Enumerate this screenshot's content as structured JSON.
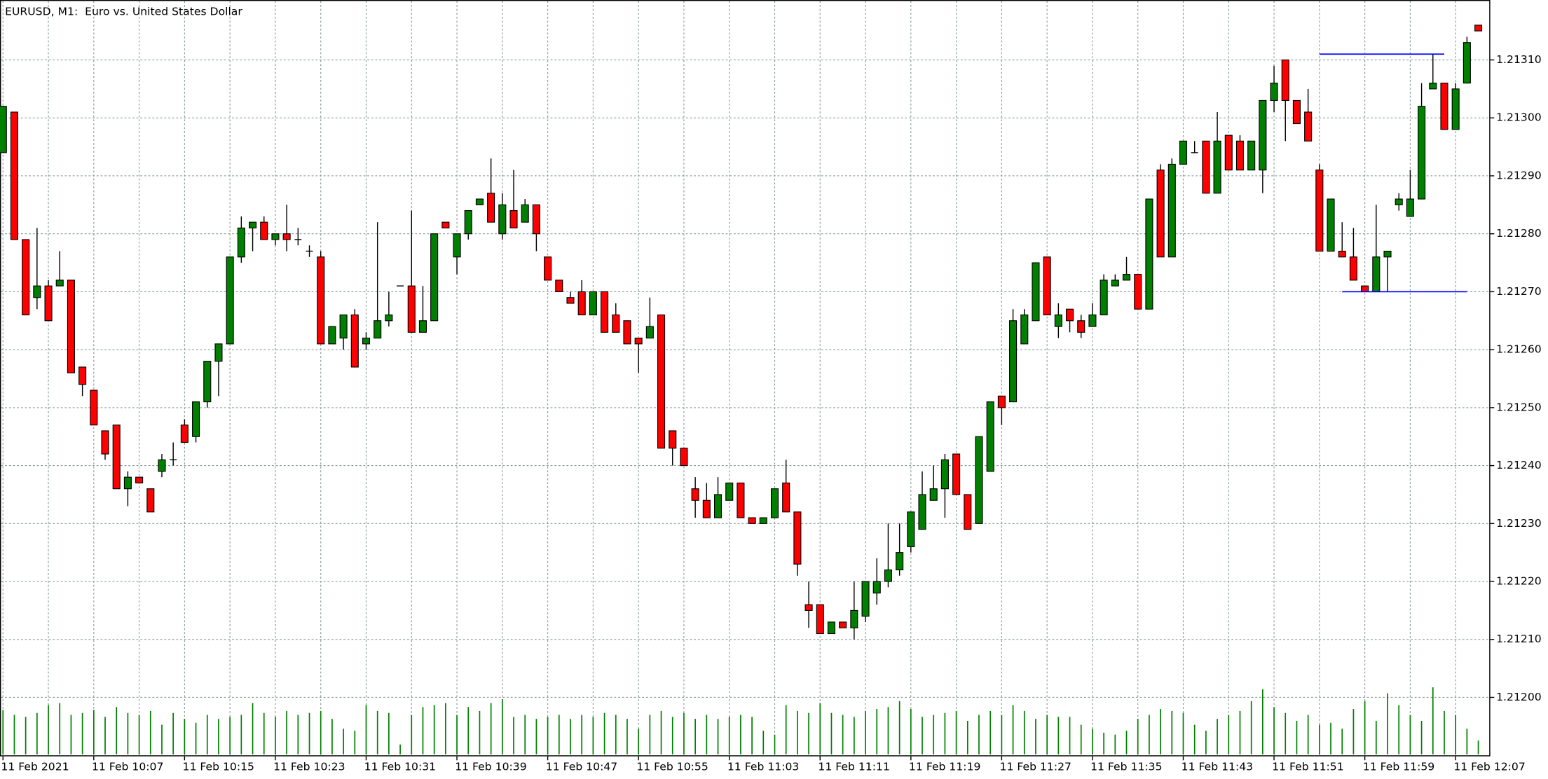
{
  "chart_data": {
    "type": "candlestick",
    "title": "EURUSD, M1:  Euro vs. United States Dollar",
    "categories": [
      "11 Feb 2021",
      null,
      null,
      null,
      null,
      null,
      null,
      null,
      "11 Feb 10:07",
      null,
      null,
      null,
      null,
      null,
      null,
      null,
      "11 Feb 10:15",
      null,
      null,
      null,
      null,
      null,
      null,
      null,
      "11 Feb 10:23",
      null,
      null,
      null,
      null,
      null,
      null,
      null,
      "11 Feb 10:31",
      null,
      null,
      null,
      null,
      null,
      null,
      null,
      "11 Feb 10:39",
      null,
      null,
      null,
      null,
      null,
      null,
      null,
      "11 Feb 10:47",
      null,
      null,
      null,
      null,
      null,
      null,
      null,
      "11 Feb 10:55",
      null,
      null,
      null,
      null,
      null,
      null,
      null,
      "11 Feb 11:03",
      null,
      null,
      null,
      null,
      null,
      null,
      null,
      "11 Feb 11:11",
      null,
      null,
      null,
      null,
      null,
      null,
      null,
      "11 Feb 11:19",
      null,
      null,
      null,
      null,
      null,
      null,
      null,
      "11 Feb 11:27",
      null,
      null,
      null,
      null,
      null,
      null,
      null,
      "11 Feb 11:35",
      null,
      null,
      null,
      null,
      null,
      null,
      null,
      "11 Feb 11:43",
      null,
      null,
      null,
      null,
      null,
      null,
      null,
      "11 Feb 11:51",
      null,
      null,
      null,
      null,
      null,
      null,
      null,
      "11 Feb 11:59",
      null,
      null,
      null,
      null,
      null,
      null,
      null,
      "11 Feb 12:07",
      null,
      null
    ],
    "open": [
      1.21294,
      1.21301,
      1.21279,
      1.21269,
      1.21271,
      1.21271,
      1.21272,
      1.21257,
      1.21253,
      1.21246,
      1.21247,
      1.21236,
      1.21238,
      1.21236,
      1.21239,
      1.21241,
      1.21247,
      1.21245,
      1.21251,
      1.21258,
      1.21261,
      1.21276,
      1.21281,
      1.21282,
      1.21279,
      1.2128,
      1.21279,
      1.21277,
      1.21276,
      1.21261,
      1.21262,
      1.21266,
      1.21261,
      1.21262,
      1.21265,
      1.21271,
      1.21271,
      1.21263,
      1.21265,
      1.21282,
      1.21276,
      1.2128,
      1.21285,
      1.21287,
      1.2128,
      1.21284,
      1.21282,
      1.21285,
      1.21276,
      1.21272,
      1.21269,
      1.2127,
      1.21266,
      1.2127,
      1.21266,
      1.21265,
      1.21262,
      1.21262,
      1.21266,
      1.21246,
      1.21243,
      1.21236,
      1.21234,
      1.21231,
      1.21234,
      1.21237,
      1.21231,
      1.2123,
      1.21231,
      1.21237,
      1.21232,
      1.21216,
      1.21216,
      1.21211,
      1.21213,
      1.21212,
      1.21214,
      1.21218,
      1.2122,
      1.21222,
      1.21226,
      1.21229,
      1.21234,
      1.21236,
      1.21242,
      1.21235,
      1.2123,
      1.21239,
      1.21252,
      1.21251,
      1.21261,
      1.21265,
      1.21276,
      1.21264,
      1.21267,
      1.21265,
      1.21264,
      1.21266,
      1.21271,
      1.21272,
      1.21273,
      1.21267,
      1.21291,
      1.21276,
      1.21292,
      1.21294,
      1.21296,
      1.21287,
      1.21297,
      1.21296,
      1.21291,
      1.21291,
      1.21303,
      1.2131,
      1.21303,
      1.21301,
      1.21291,
      1.21277,
      1.21277,
      1.21276,
      1.21271,
      1.2127,
      1.21276,
      1.21285,
      1.21283,
      1.21286,
      1.21305,
      1.21306,
      1.21298,
      1.21306,
      1.21316
    ],
    "high": [
      1.21302,
      1.21301,
      1.21279,
      1.21281,
      1.21272,
      1.21277,
      1.21272,
      1.21257,
      1.21253,
      1.21246,
      1.21247,
      1.21239,
      1.21238,
      1.21236,
      1.21242,
      1.21244,
      1.21248,
      1.21251,
      1.21258,
      1.21261,
      1.21276,
      1.21283,
      1.21282,
      1.21283,
      1.2128,
      1.21285,
      1.21281,
      1.21278,
      1.21277,
      1.21264,
      1.21266,
      1.21267,
      1.21263,
      1.21282,
      1.2127,
      1.21271,
      1.21284,
      1.21271,
      1.2128,
      1.21282,
      1.2128,
      1.21284,
      1.21286,
      1.21293,
      1.21287,
      1.21291,
      1.21286,
      1.21285,
      1.21276,
      1.21272,
      1.2127,
      1.21272,
      1.2127,
      1.2127,
      1.21268,
      1.21265,
      1.21262,
      1.21269,
      1.21266,
      1.21246,
      1.21243,
      1.21238,
      1.21237,
      1.21238,
      1.21237,
      1.21237,
      1.21231,
      1.21231,
      1.21236,
      1.21241,
      1.21232,
      1.2122,
      1.21216,
      1.21213,
      1.21213,
      1.2122,
      1.2122,
      1.21224,
      1.2123,
      1.2123,
      1.21232,
      1.21239,
      1.2124,
      1.21242,
      1.21242,
      1.21235,
      1.21245,
      1.21251,
      1.21252,
      1.21267,
      1.21267,
      1.21275,
      1.21276,
      1.21268,
      1.21267,
      1.21266,
      1.21268,
      1.21273,
      1.21273,
      1.21276,
      1.21273,
      1.21286,
      1.21292,
      1.21293,
      1.21296,
      1.21296,
      1.21296,
      1.21301,
      1.21297,
      1.21297,
      1.21296,
      1.21303,
      1.21309,
      1.2131,
      1.21303,
      1.21305,
      1.21292,
      1.21286,
      1.21282,
      1.21281,
      1.21271,
      1.21285,
      1.21277,
      1.21287,
      1.21291,
      1.21306,
      1.21311,
      1.21306,
      1.21306,
      1.21314,
      1.21316
    ],
    "low": [
      1.21294,
      1.21279,
      1.21266,
      1.21267,
      1.21265,
      1.21271,
      1.21256,
      1.21252,
      1.21247,
      1.21241,
      1.21236,
      1.21233,
      1.21237,
      1.21232,
      1.21238,
      1.2124,
      1.21244,
      1.21244,
      1.2125,
      1.21252,
      1.21261,
      1.21275,
      1.21277,
      1.21279,
      1.21278,
      1.21277,
      1.21278,
      1.21276,
      1.21261,
      1.21261,
      1.2126,
      1.21257,
      1.2126,
      1.21262,
      1.21264,
      1.21271,
      1.21263,
      1.21263,
      1.21265,
      1.21281,
      1.21273,
      1.21279,
      1.21285,
      1.21282,
      1.21279,
      1.21281,
      1.21282,
      1.21277,
      1.21272,
      1.2127,
      1.21268,
      1.21266,
      1.21266,
      1.21263,
      1.21263,
      1.21261,
      1.21256,
      1.21262,
      1.21243,
      1.2124,
      1.2124,
      1.21231,
      1.21231,
      1.21231,
      1.21234,
      1.21231,
      1.2123,
      1.2123,
      1.21231,
      1.21232,
      1.21221,
      1.21212,
      1.21211,
      1.21211,
      1.21212,
      1.2121,
      1.21213,
      1.21216,
      1.21219,
      1.21221,
      1.21225,
      1.21229,
      1.21234,
      1.21231,
      1.21235,
      1.21229,
      1.2123,
      1.21239,
      1.21247,
      1.21251,
      1.21261,
      1.21265,
      1.21266,
      1.21262,
      1.21263,
      1.21262,
      1.21264,
      1.21266,
      1.21271,
      1.21272,
      1.21267,
      1.21267,
      1.21276,
      1.21276,
      1.21292,
      1.21294,
      1.21287,
      1.21287,
      1.21291,
      1.21291,
      1.21291,
      1.21287,
      1.21301,
      1.21296,
      1.21299,
      1.21296,
      1.21277,
      1.21277,
      1.21276,
      1.21272,
      1.2127,
      1.2127,
      1.2127,
      1.21284,
      1.21283,
      1.21286,
      1.21305,
      1.21298,
      1.21298,
      1.21306,
      1.21315
    ],
    "close": [
      1.21302,
      1.21279,
      1.21266,
      1.21271,
      1.21265,
      1.21272,
      1.21256,
      1.21254,
      1.21247,
      1.21242,
      1.21236,
      1.21238,
      1.21237,
      1.21232,
      1.21241,
      1.21241,
      1.21244,
      1.21251,
      1.21258,
      1.21261,
      1.21276,
      1.21281,
      1.21282,
      1.21279,
      1.2128,
      1.21279,
      1.21279,
      1.21277,
      1.21261,
      1.21264,
      1.21266,
      1.21257,
      1.21262,
      1.21265,
      1.21266,
      1.21271,
      1.21263,
      1.21265,
      1.2128,
      1.21281,
      1.2128,
      1.21284,
      1.21286,
      1.21282,
      1.21285,
      1.21281,
      1.21285,
      1.2128,
      1.21272,
      1.2127,
      1.21268,
      1.21266,
      1.2127,
      1.21263,
      1.21263,
      1.21261,
      1.21261,
      1.21264,
      1.21243,
      1.21243,
      1.2124,
      1.21234,
      1.21231,
      1.21235,
      1.21237,
      1.21231,
      1.2123,
      1.21231,
      1.21236,
      1.21232,
      1.21223,
      1.21215,
      1.21211,
      1.21213,
      1.21212,
      1.21215,
      1.2122,
      1.2122,
      1.21222,
      1.21225,
      1.21232,
      1.21235,
      1.21236,
      1.21241,
      1.21235,
      1.21229,
      1.21245,
      1.21251,
      1.2125,
      1.21265,
      1.21266,
      1.21275,
      1.21266,
      1.21266,
      1.21265,
      1.21263,
      1.21266,
      1.21272,
      1.21272,
      1.21273,
      1.21267,
      1.21286,
      1.21276,
      1.21292,
      1.21296,
      1.21294,
      1.21287,
      1.21296,
      1.21291,
      1.21291,
      1.21296,
      1.21303,
      1.21306,
      1.21303,
      1.21299,
      1.21296,
      1.21277,
      1.21286,
      1.21276,
      1.21272,
      1.2127,
      1.21276,
      1.21277,
      1.21286,
      1.21286,
      1.21302,
      1.21306,
      1.21298,
      1.21305,
      1.21313,
      1.21315
    ],
    "volume": [
      45,
      40,
      38,
      42,
      50,
      52,
      40,
      42,
      45,
      38,
      48,
      42,
      40,
      44,
      30,
      42,
      36,
      32,
      40,
      36,
      38,
      40,
      52,
      42,
      38,
      44,
      40,
      42,
      44,
      36,
      26,
      24,
      50,
      44,
      42,
      10,
      40,
      48,
      50,
      52,
      40,
      48,
      44,
      52,
      56,
      38,
      40,
      36,
      38,
      40,
      36,
      40,
      38,
      42,
      40,
      36,
      26,
      40,
      44,
      38,
      42,
      36,
      40,
      36,
      38,
      40,
      38,
      24,
      20,
      50,
      44,
      42,
      52,
      42,
      40,
      38,
      44,
      46,
      48,
      54,
      46,
      38,
      40,
      42,
      44,
      34,
      40,
      44,
      40,
      50,
      44,
      36,
      40,
      38,
      38,
      30,
      26,
      22,
      20,
      24,
      36,
      40,
      46,
      44,
      42,
      30,
      24,
      36,
      40,
      44,
      54,
      66,
      48,
      42,
      34,
      40,
      30,
      32,
      26,
      46,
      54,
      34,
      62,
      50,
      40,
      34,
      68,
      44,
      40,
      26,
      14
    ],
    "up_color": "#008000",
    "down_color": "#ff0000",
    "volume_color": "#008000",
    "ylim": [
      1.2119,
      1.2132
    ],
    "yticks": [
      {
        "value": 1.212,
        "label": "1.21200"
      },
      {
        "value": 1.2121,
        "label": "1.21210"
      },
      {
        "value": 1.2122,
        "label": "1.21220"
      },
      {
        "value": 1.2123,
        "label": "1.21230"
      },
      {
        "value": 1.2124,
        "label": "1.21240"
      },
      {
        "value": 1.2125,
        "label": "1.21250"
      },
      {
        "value": 1.2126,
        "label": "1.21260"
      },
      {
        "value": 1.2127,
        "label": "1.21270"
      },
      {
        "value": 1.2128,
        "label": "1.21280"
      },
      {
        "value": 1.2129,
        "label": "1.21290"
      },
      {
        "value": 1.213,
        "label": "1.21300"
      },
      {
        "value": 1.2131,
        "label": "1.21310"
      }
    ],
    "grid": true,
    "lines": [
      {
        "value": 1.21311,
        "from": 116,
        "to": 127,
        "color": "#0000ff"
      },
      {
        "value": 1.2127,
        "from": 118,
        "to": 129,
        "color": "#0000ff"
      }
    ]
  }
}
